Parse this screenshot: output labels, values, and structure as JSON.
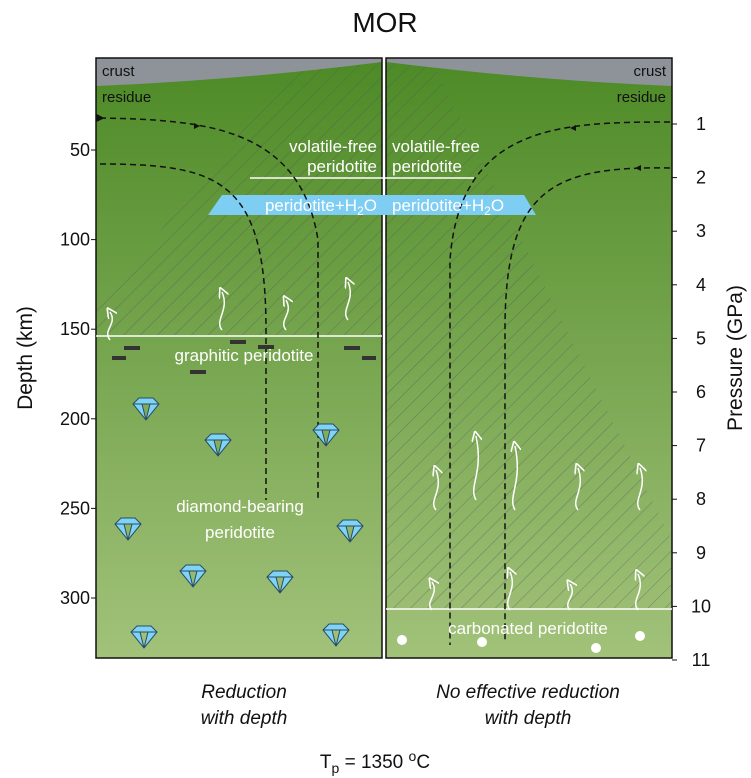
{
  "title": "MOR",
  "depth_axis": {
    "label": "Depth (km)",
    "ticks": [
      50,
      100,
      150,
      200,
      250,
      300
    ]
  },
  "pressure_axis": {
    "label": "Pressure (GPa)",
    "ticks": [
      1,
      2,
      3,
      4,
      5,
      6,
      7,
      8,
      9,
      10,
      11
    ]
  },
  "left_panel": {
    "crust": "crust",
    "residue": "residue",
    "volatile_free": [
      "volatile-free",
      "peridotite"
    ],
    "hydrous": [
      "peridotite+H",
      "2",
      "O"
    ],
    "graphitic": "graphitic peridotite",
    "diamond": [
      "diamond-bearing",
      "peridotite"
    ],
    "caption": [
      "Reduction",
      "with depth"
    ]
  },
  "right_panel": {
    "crust": "crust",
    "residue": "residue",
    "volatile_free": [
      "volatile-free",
      "peridotite"
    ],
    "hydrous": [
      "peridotite+H",
      "2",
      "O"
    ],
    "carbonated": "carbonated peridotite",
    "caption": [
      "No effective reduction",
      "with depth"
    ]
  },
  "footer": [
    "T",
    "p",
    " = 1350 ",
    "o",
    "C"
  ]
}
